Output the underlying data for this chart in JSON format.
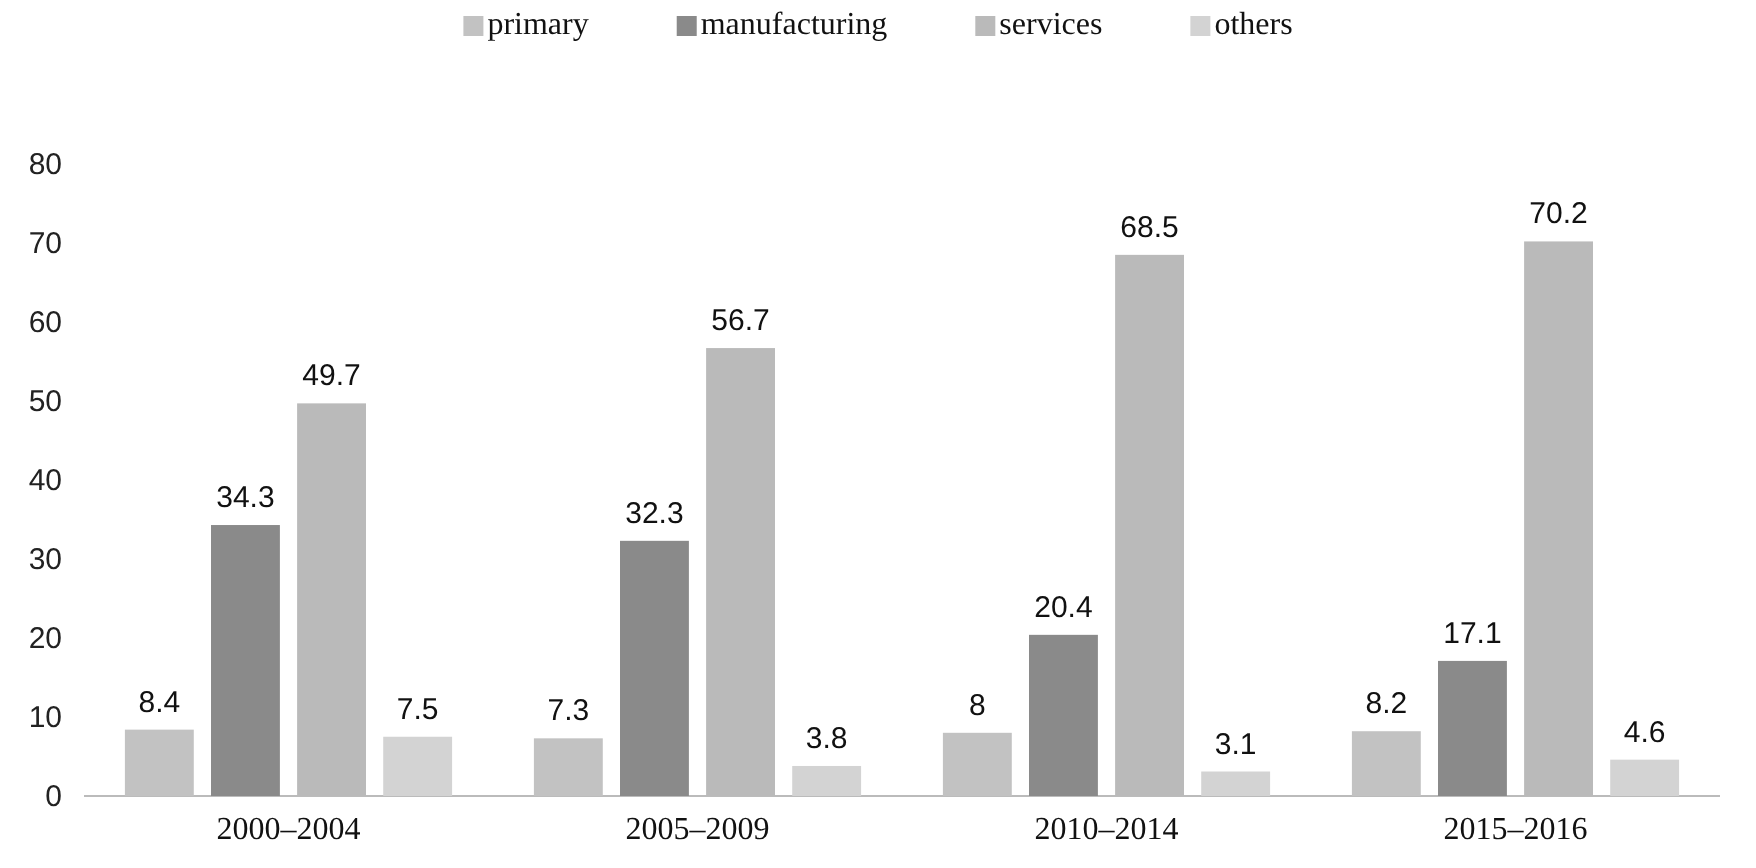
{
  "chart_data": {
    "type": "bar",
    "categories": [
      "2000–2004",
      "2005–2009",
      "2010–2014",
      "2015–2016"
    ],
    "series": [
      {
        "name": "primary",
        "color": "#c2c2c2",
        "values": [
          8.4,
          7.3,
          8,
          8.2
        ]
      },
      {
        "name": "manufacturing",
        "color": "#8a8a8a",
        "values": [
          34.3,
          32.3,
          20.4,
          17.1
        ]
      },
      {
        "name": "services",
        "color": "#bababa",
        "values": [
          49.7,
          56.7,
          68.5,
          70.2
        ]
      },
      {
        "name": "others",
        "color": "#d3d3d3",
        "values": [
          7.5,
          3.8,
          3.1,
          4.6
        ]
      }
    ],
    "ylim": [
      0,
      80
    ],
    "yticks": [
      0,
      10,
      20,
      30,
      40,
      50,
      60,
      70,
      80
    ],
    "grid": false,
    "legend": "top",
    "data_labels": true
  }
}
